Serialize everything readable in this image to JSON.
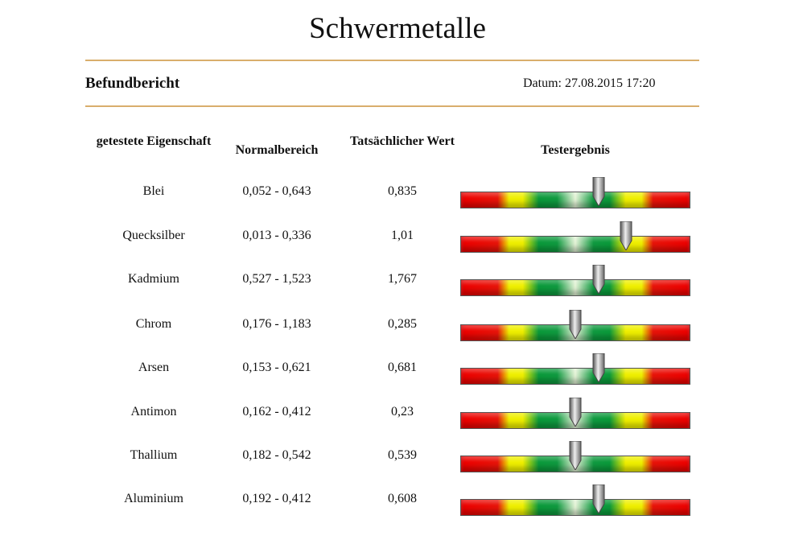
{
  "title": "Schwermetalle",
  "subtitle": "Befundbericht",
  "date": "Datum: 27.08.2015 17:20",
  "headers": {
    "property": "getestete Eigenschaft",
    "range": "Normalbereich",
    "actual": "Tatsächlicher Wert",
    "result": "Testergebnis"
  },
  "rows": [
    {
      "name": "Blei",
      "range": "0,052 - 0,643",
      "value": "0,835",
      "marker": 0.6
    },
    {
      "name": "Quecksilber",
      "range": "0,013 - 0,336",
      "value": "1,01",
      "marker": 0.72
    },
    {
      "name": "Kadmium",
      "range": "0,527 - 1,523",
      "value": "1,767",
      "marker": 0.6
    },
    {
      "name": "Chrom",
      "range": "0,176 - 1,183",
      "value": "0,285",
      "marker": 0.5
    },
    {
      "name": "Arsen",
      "range": "0,153 - 0,621",
      "value": "0,681",
      "marker": 0.6
    },
    {
      "name": "Antimon",
      "range": "0,162 - 0,412",
      "value": "0,23",
      "marker": 0.5
    },
    {
      "name": "Thallium",
      "range": "0,182 - 0,542",
      "value": "0,539",
      "marker": 0.5
    },
    {
      "name": "Aluminium",
      "range": "0,192 - 0,412",
      "value": "0,608",
      "marker": 0.6
    }
  ]
}
